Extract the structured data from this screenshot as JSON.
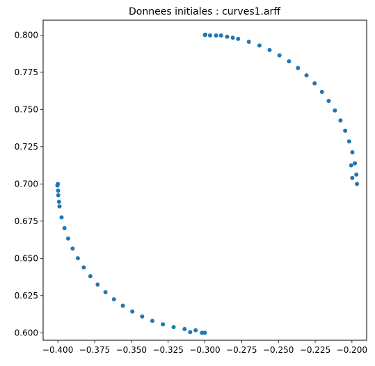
{
  "chart_data": {
    "type": "scatter",
    "title": "Donnees initiales : curves1.arff",
    "xlabel": "",
    "ylabel": "",
    "xlim": [
      -0.41,
      -0.19
    ],
    "ylim": [
      0.595,
      0.81
    ],
    "xticks": [
      -0.4,
      -0.375,
      -0.35,
      -0.325,
      -0.3,
      -0.275,
      -0.25,
      -0.225,
      -0.2
    ],
    "xtick_labels": [
      "−0.400",
      "−0.375",
      "−0.350",
      "−0.325",
      "−0.300",
      "−0.275",
      "−0.250",
      "−0.225",
      "−0.200"
    ],
    "yticks": [
      0.6,
      0.625,
      0.65,
      0.675,
      0.7,
      0.725,
      0.75,
      0.775,
      0.8
    ],
    "ytick_labels": [
      "0.600",
      "0.625",
      "0.650",
      "0.675",
      "0.700",
      "0.725",
      "0.750",
      "0.775",
      "0.800"
    ],
    "grid": false,
    "marker_color": "#1f77b4",
    "series": [
      {
        "points": [
          [
            -0.3,
            0.8
          ],
          [
            -0.2924,
            0.79971
          ],
          [
            -0.2849,
            0.79887
          ],
          [
            -0.2774,
            0.79745
          ],
          [
            -0.2701,
            0.79549
          ],
          [
            -0.2629,
            0.79298
          ],
          [
            -0.256,
            0.78994
          ],
          [
            -0.2493,
            0.7864
          ],
          [
            -0.2428,
            0.78237
          ],
          [
            -0.2367,
            0.77788
          ],
          [
            -0.2309,
            0.77294
          ],
          [
            -0.2254,
            0.76759
          ],
          [
            -0.2204,
            0.76185
          ],
          [
            -0.2158,
            0.75576
          ],
          [
            -0.2116,
            0.74935
          ],
          [
            -0.2078,
            0.74266
          ],
          [
            -0.2046,
            0.73572
          ],
          [
            -0.2019,
            0.72857
          ],
          [
            -0.1997,
            0.72126
          ],
          [
            -0.198,
            0.71382
          ],
          [
            -0.197,
            0.70629
          ],
          [
            -0.1966,
            0.7
          ],
          [
            -0.1998,
            0.704
          ],
          [
            -0.2005,
            0.7125
          ],
          [
            -0.2997,
            0.8003
          ],
          [
            -0.2965,
            0.7998
          ],
          [
            -0.289,
            0.7997
          ],
          [
            -0.281,
            0.7982
          ]
        ]
      },
      {
        "points": [
          [
            -0.4,
            0.7
          ],
          [
            -0.39971,
            0.69243
          ],
          [
            -0.39887,
            0.68493
          ],
          [
            -0.39745,
            0.67755
          ],
          [
            -0.39549,
            0.67033
          ],
          [
            -0.39298,
            0.66336
          ],
          [
            -0.38994,
            0.65659
          ],
          [
            -0.3864,
            0.65008
          ],
          [
            -0.38237,
            0.64388
          ],
          [
            -0.37788,
            0.63799
          ],
          [
            -0.37294,
            0.63242
          ],
          [
            -0.36759,
            0.62724
          ],
          [
            -0.36185,
            0.6225
          ],
          [
            -0.35576,
            0.61818
          ],
          [
            -0.34935,
            0.61432
          ],
          [
            -0.34266,
            0.61094
          ],
          [
            -0.33572,
            0.60806
          ],
          [
            -0.32857,
            0.60568
          ],
          [
            -0.32126,
            0.60384
          ],
          [
            -0.31382,
            0.60252
          ],
          [
            -0.30629,
            0.60173
          ],
          [
            -0.3,
            0.6
          ],
          [
            -0.302,
            0.6
          ],
          [
            -0.31,
            0.6005
          ],
          [
            -0.4003,
            0.699
          ],
          [
            -0.3998,
            0.6955
          ],
          [
            -0.3992,
            0.688
          ]
        ]
      }
    ]
  }
}
